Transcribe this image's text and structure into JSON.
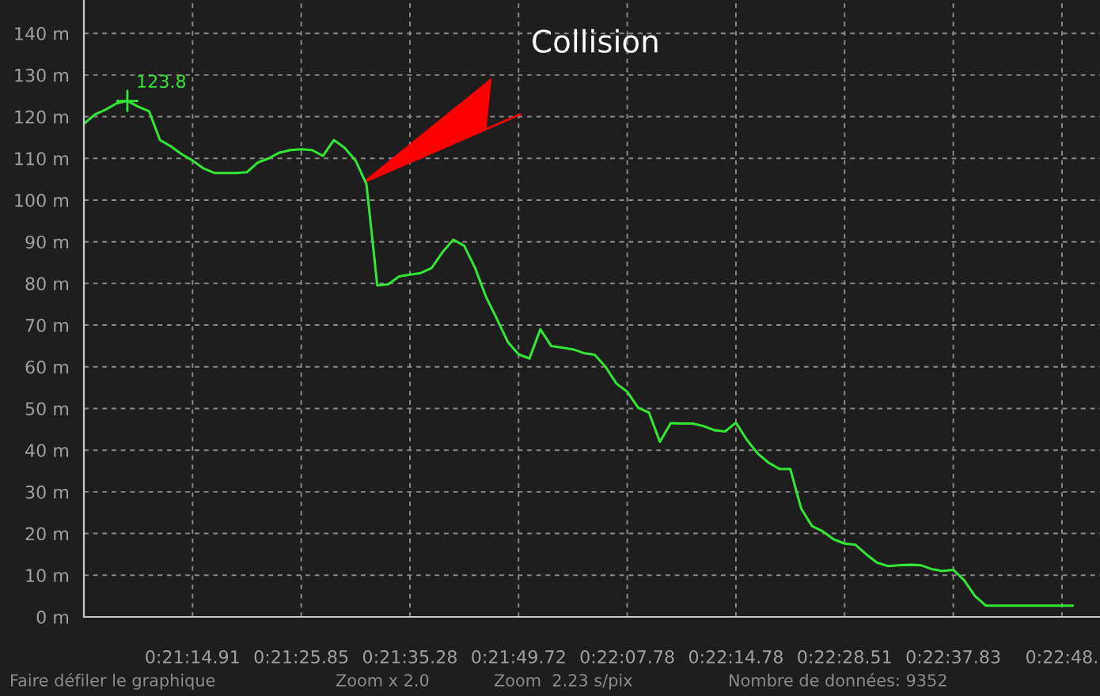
{
  "chart_data": {
    "type": "line",
    "categories": [
      null,
      null,
      null,
      null,
      null,
      null,
      null,
      null,
      null,
      null,
      "0:21:14.91",
      null,
      null,
      null,
      null,
      null,
      null,
      null,
      null,
      null,
      "0:21:25.85",
      null,
      null,
      null,
      null,
      null,
      null,
      null,
      null,
      null,
      "0:21:35.28",
      null,
      null,
      null,
      null,
      null,
      null,
      null,
      null,
      null,
      "0:21:49.72",
      null,
      null,
      null,
      null,
      null,
      null,
      null,
      null,
      null,
      "0:22:07.78",
      null,
      null,
      null,
      null,
      null,
      null,
      null,
      null,
      null,
      "0:22:14.78",
      null,
      null,
      null,
      null,
      null,
      null,
      null,
      null,
      null,
      "0:22:28.51",
      null,
      null,
      null,
      null,
      null,
      null,
      null,
      null,
      null,
      "0:22:37.83",
      null,
      null,
      null,
      null,
      null,
      null,
      null,
      null,
      null,
      "0:22:48.",
      null
    ],
    "series": [
      {
        "color": "#33e633",
        "values": [
          118.3,
          120.5,
          121.7,
          123.2,
          123.8,
          122.4,
          121.3,
          114.4,
          112.9,
          111.0,
          109.5,
          107.6,
          106.5,
          106.5,
          106.5,
          106.7,
          109,
          110,
          111.4,
          112,
          112.2,
          112,
          110.6,
          114.4,
          112.5,
          109.5,
          103.8,
          79.5,
          79.8,
          81.7,
          82.1,
          82.5,
          83.7,
          87.5,
          90.5,
          89,
          83.7,
          76.8,
          71.5,
          66,
          63,
          62,
          69,
          65,
          64.6,
          64.2,
          63.3,
          62.9,
          60,
          56,
          54,
          50.2,
          49,
          42,
          46.5,
          46.4,
          46.4,
          45.8,
          44.8,
          44.5,
          46.6,
          42.5,
          39.2,
          37,
          35.5,
          35.5,
          26,
          21.8,
          20.5,
          18.6,
          17.6,
          17.3,
          15,
          13,
          12.2,
          12.4,
          12.5,
          12.4,
          11.5,
          11,
          11.3,
          8.8,
          5,
          2.7,
          2.7,
          2.7,
          2.7,
          2.7,
          2.7,
          2.7,
          2.7,
          2.7
        ]
      }
    ],
    "ylim": [
      0,
      148
    ],
    "yticks": [
      {
        "value": 0,
        "label": "0 m"
      },
      {
        "value": 10,
        "label": "10 m"
      },
      {
        "value": 20,
        "label": "20 m"
      },
      {
        "value": 30,
        "label": "30 m"
      },
      {
        "value": 40,
        "label": "40 m"
      },
      {
        "value": 50,
        "label": "50 m"
      },
      {
        "value": 60,
        "label": "60 m"
      },
      {
        "value": 70,
        "label": "70 m"
      },
      {
        "value": 80,
        "label": "80 m"
      },
      {
        "value": 90,
        "label": "90 m"
      },
      {
        "value": 100,
        "label": "100 m"
      },
      {
        "value": 110,
        "label": "110 m"
      },
      {
        "value": 120,
        "label": "120 m"
      },
      {
        "value": 130,
        "label": "130 m"
      },
      {
        "value": 140,
        "label": "140 m"
      }
    ],
    "grid": true,
    "annotations": [
      "123.8",
      "Collision",
      "Faire défiler le graphique",
      "Zoom x 2.0",
      "Zoom  2.23 s/pix",
      "Nombre de données: 9352"
    ]
  }
}
